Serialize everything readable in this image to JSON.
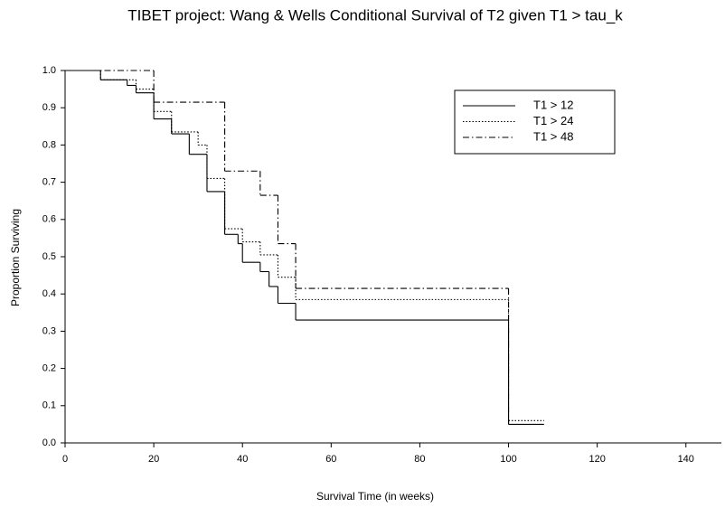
{
  "chart_data": {
    "type": "step",
    "title": "TIBET project: Wang & Wells Conditional Survival of T2 given T1 > tau_k",
    "x_label": "Survival Time (in weeks)",
    "y_label": "Proportion Surviving",
    "xlim": [
      0,
      148
    ],
    "ylim": [
      0,
      1.0
    ],
    "xticks": [
      0,
      20,
      40,
      60,
      80,
      100,
      120,
      140
    ],
    "yticks": [
      {
        "value": 0,
        "label": "0.0"
      },
      0.1,
      0.2,
      0.3,
      0.4,
      0.5,
      0.6,
      0.7,
      0.8,
      0.9,
      {
        "value": 1,
        "label": "1.0"
      }
    ],
    "legend": "upper-right",
    "series": [
      {
        "name": "T1 > 12",
        "color": "#000000",
        "linestyle": "solid",
        "x": [
          0,
          8,
          14,
          16,
          20,
          24,
          28,
          32,
          36,
          39,
          40,
          44,
          46,
          48,
          52,
          100,
          108
        ],
        "values": [
          1.0,
          0.975,
          0.96,
          0.94,
          0.87,
          0.83,
          0.775,
          0.675,
          0.56,
          0.535,
          0.485,
          0.46,
          0.42,
          0.375,
          0.33,
          0.05,
          0.05
        ]
      },
      {
        "name": "T1 > 24",
        "color": "#000000",
        "linestyle": "dotted",
        "x": [
          0,
          8,
          16,
          20,
          24,
          30,
          32,
          36,
          40,
          44,
          48,
          52,
          100,
          108
        ],
        "values": [
          1.0,
          0.975,
          0.95,
          0.89,
          0.835,
          0.8,
          0.71,
          0.575,
          0.54,
          0.505,
          0.445,
          0.385,
          0.06,
          0.06
        ]
      },
      {
        "name": "T1 > 48",
        "color": "#000000",
        "linestyle": "dashdot",
        "x": [
          0,
          20,
          36,
          44,
          48,
          52,
          100
        ],
        "values": [
          1.0,
          0.915,
          0.73,
          0.665,
          0.535,
          0.415,
          0.05
        ]
      }
    ]
  }
}
